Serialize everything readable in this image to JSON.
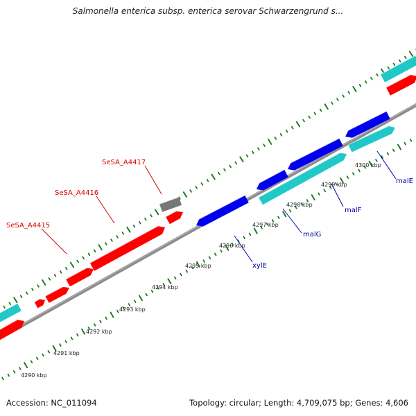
{
  "title": "Salmonella enterica subsp. enterica serovar Schwarzengrund s...",
  "footer": {
    "accession": "Accession: NC_011094",
    "summary": "Topology: circular; Length: 4,709,075 bp; Genes: 4,606"
  },
  "colors": {
    "backbone": "#8c8c8c",
    "ticks": "#1f7a1f",
    "forward_gene": "#ff0000",
    "pseudo_gene": "#777777",
    "reverse_gene": "#0000ee",
    "cyan_feature": "#20c8c8",
    "red_label": "#d40000",
    "blue_label": "#0000aa"
  },
  "kbp_labels": [
    "4290 kbp",
    "4291 kbp",
    "4292 kbp",
    "4293 kbp",
    "4294 kbp",
    "4295 kbp",
    "4296 kbp",
    "4297 kbp",
    "4298 kbp",
    "4299 kbp",
    "4300 kbp"
  ],
  "gene_labels": {
    "SeSA_A4415": "SeSA_A4415",
    "SeSA_A4416": "SeSA_A4416",
    "SeSA_A4417": "SeSA_A4417",
    "xylE": "xylE",
    "malG": "malG",
    "malF": "malF",
    "malE": "malE"
  }
}
